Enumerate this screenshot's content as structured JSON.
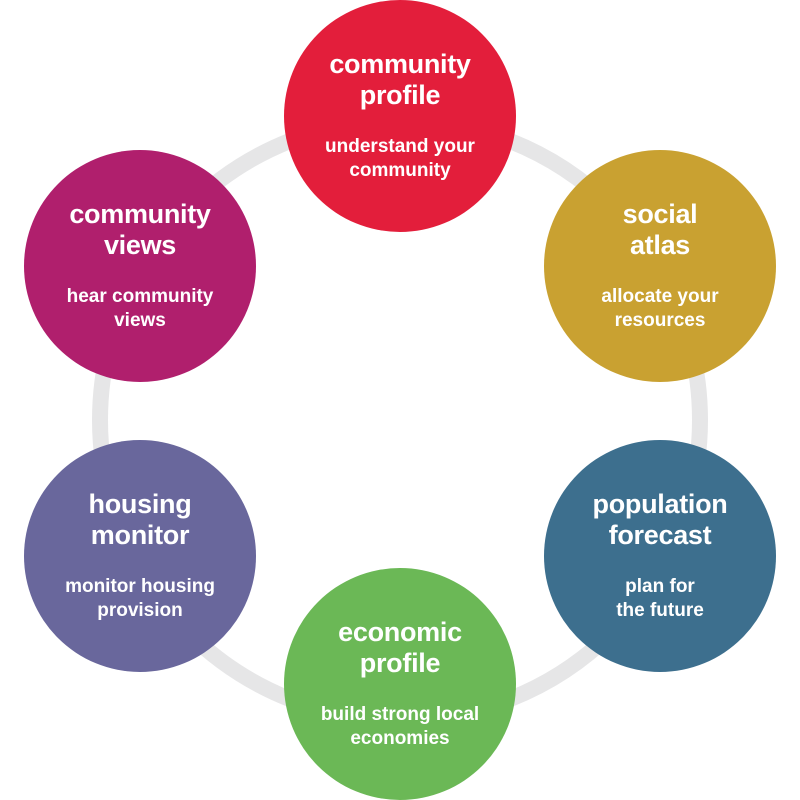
{
  "nodes": {
    "community_profile": {
      "title": "community\nprofile",
      "subtitle": "understand your\ncommunity",
      "color": "#e31e3b"
    },
    "social_atlas": {
      "title": "social\natlas",
      "subtitle": "allocate your\nresources",
      "color": "#c9a131"
    },
    "population_forecast": {
      "title": "population\nforecast",
      "subtitle": "plan for\nthe future",
      "color": "#3d6f8e"
    },
    "economic_profile": {
      "title": "economic\nprofile",
      "subtitle": "build strong local\neconomies",
      "color": "#6bb856"
    },
    "housing_monitor": {
      "title": "housing\nmonitor",
      "subtitle": "monitor housing\nprovision",
      "color": "#69679c"
    },
    "community_views": {
      "title": "community\nviews",
      "subtitle": "hear community\nviews",
      "color": "#b01f6d"
    }
  },
  "ring_color": "#e6e6e7"
}
